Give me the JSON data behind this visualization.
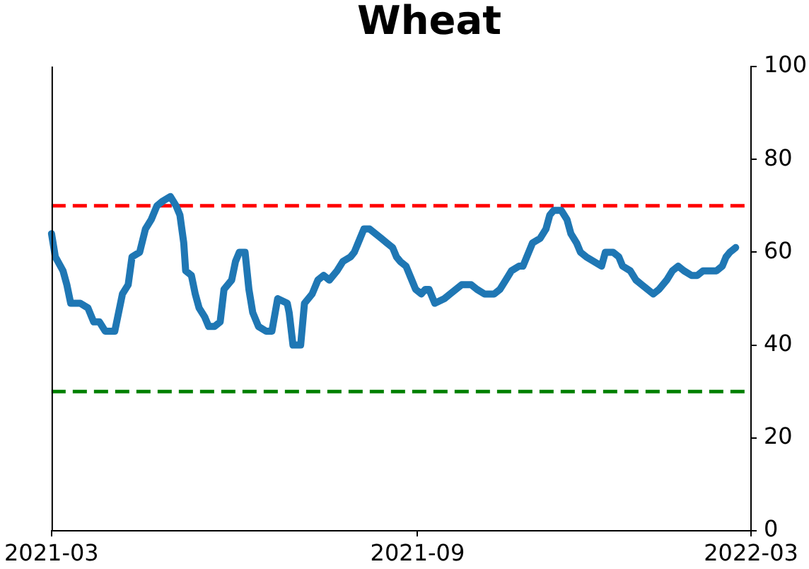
{
  "chart_data": {
    "type": "line",
    "title": "Wheat",
    "x": [
      "2021-03-01",
      "2021-03-03",
      "2021-03-07",
      "2021-03-09",
      "2021-03-11",
      "2021-03-13",
      "2021-03-16",
      "2021-03-20",
      "2021-03-23",
      "2021-03-26",
      "2021-03-29",
      "2021-04-03",
      "2021-04-05",
      "2021-04-07",
      "2021-04-10",
      "2021-04-12",
      "2021-04-16",
      "2021-04-19",
      "2021-04-22",
      "2021-04-25",
      "2021-04-28",
      "2021-05-02",
      "2021-05-05",
      "2021-05-07",
      "2021-05-09",
      "2021-05-10",
      "2021-05-13",
      "2021-05-15",
      "2021-05-17",
      "2021-05-20",
      "2021-05-22",
      "2021-05-25",
      "2021-05-28",
      "2021-05-30",
      "2021-06-03",
      "2021-06-05",
      "2021-06-07",
      "2021-06-10",
      "2021-06-12",
      "2021-06-14",
      "2021-06-17",
      "2021-06-21",
      "2021-06-24",
      "2021-06-27",
      "2021-07-02",
      "2021-07-03",
      "2021-07-05",
      "2021-07-09",
      "2021-07-11",
      "2021-07-15",
      "2021-07-18",
      "2021-07-21",
      "2021-07-24",
      "2021-07-28",
      "2021-07-31",
      "2021-08-04",
      "2021-08-06",
      "2021-08-09",
      "2021-08-11",
      "2021-08-14",
      "2021-08-17",
      "2021-08-20",
      "2021-08-23",
      "2021-08-26",
      "2021-08-28",
      "2021-08-30",
      "2021-09-02",
      "2021-09-05",
      "2021-09-07",
      "2021-09-10",
      "2021-09-12",
      "2021-09-14",
      "2021-09-17",
      "2021-09-22",
      "2021-09-25",
      "2021-09-28",
      "2021-10-01",
      "2021-10-06",
      "2021-10-09",
      "2021-10-13",
      "2021-10-18",
      "2021-10-21",
      "2021-10-24",
      "2021-10-27",
      "2021-10-31",
      "2021-11-02",
      "2021-11-05",
      "2021-11-07",
      "2021-11-11",
      "2021-11-14",
      "2021-11-16",
      "2021-11-18",
      "2021-11-22",
      "2021-11-25",
      "2021-11-27",
      "2021-11-30",
      "2021-12-02",
      "2021-12-05",
      "2021-12-09",
      "2021-12-13",
      "2021-12-15",
      "2021-12-19",
      "2021-12-22",
      "2021-12-24",
      "2021-12-28",
      "2021-12-31",
      "2022-01-03",
      "2022-01-06",
      "2022-01-09",
      "2022-01-12",
      "2022-01-16",
      "2022-01-19",
      "2022-01-22",
      "2022-01-25",
      "2022-01-29",
      "2022-02-01",
      "2022-02-04",
      "2022-02-07",
      "2022-02-11",
      "2022-02-14",
      "2022-02-16",
      "2022-02-18",
      "2022-02-21"
    ],
    "series": [
      {
        "color": "#1f77b4",
        "values": [
          64,
          59,
          56,
          53,
          49,
          49,
          49,
          48,
          45,
          45,
          43,
          43,
          47,
          51,
          53,
          59,
          60,
          65,
          67,
          70,
          71,
          72,
          70,
          68,
          62,
          56,
          55,
          51,
          48,
          46,
          44,
          44,
          45,
          52,
          54,
          58,
          60,
          60,
          52,
          47,
          44,
          43,
          43,
          50,
          49,
          47,
          40,
          40,
          49,
          51,
          54,
          55,
          54,
          56,
          58,
          59,
          60,
          63,
          65,
          65,
          64,
          63,
          62,
          61,
          59,
          58,
          57,
          54,
          52,
          51,
          52,
          52,
          49,
          50,
          51,
          52,
          53,
          53,
          52,
          51,
          51,
          52,
          54,
          56,
          57,
          57,
          60,
          62,
          63,
          65,
          68,
          69,
          69,
          67,
          64,
          62,
          60,
          59,
          58,
          57,
          60,
          60,
          59,
          57,
          56,
          54,
          53,
          52,
          51,
          52,
          54,
          56,
          57,
          56,
          55,
          55,
          56,
          56,
          56,
          57,
          59,
          60,
          61
        ]
      }
    ],
    "xlim": [
      "2021-03",
      "2022-03"
    ],
    "xticks": [
      "2021-03",
      {
        "value": "2021-09-08",
        "label": "2021-09"
      },
      "2022-03"
    ],
    "ylim": [
      0,
      100
    ],
    "yticks": [
      0,
      20,
      40,
      60,
      80,
      100
    ],
    "ref_lines": [
      {
        "axis": "y",
        "value": 70,
        "color": "#ff0000",
        "line_style": "dashed"
      },
      {
        "axis": "y",
        "value": 30,
        "color": "#008000",
        "line_style": "dashed"
      }
    ],
    "grid": false,
    "legend": false
  }
}
